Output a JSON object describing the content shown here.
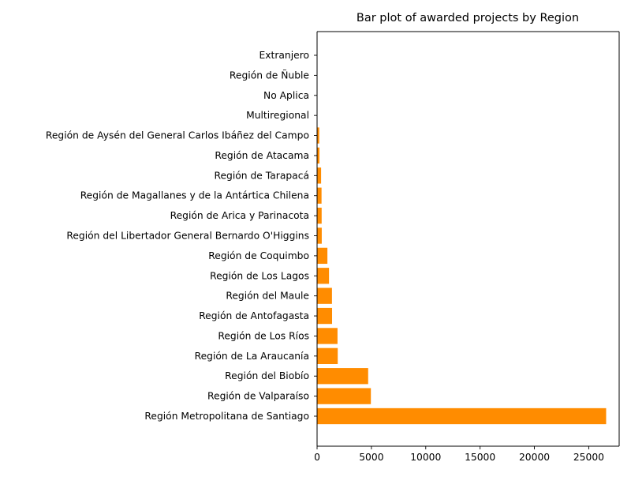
{
  "chart_data": {
    "type": "bar",
    "orientation": "horizontal",
    "title": "Bar plot of awarded projects by Region",
    "xlabel": "",
    "ylabel": "",
    "xlim": [
      0,
      27800
    ],
    "xticks": [
      0,
      5000,
      10000,
      15000,
      20000,
      25000
    ],
    "xtick_labels": [
      "0",
      "5000",
      "10000",
      "15000",
      "20000",
      "25000"
    ],
    "bar_color": "#ff8c00",
    "grid": false,
    "categories": [
      "Región Metropolitana de Santiago",
      "Región de Valparaíso",
      "Región del Biobío",
      "Región de La Araucanía",
      "Región de Los Ríos",
      "Región de Antofagasta",
      "Región del Maule",
      "Región de Los Lagos",
      "Región de Coquimbo",
      "Región del Libertador General Bernardo O'Higgins",
      "Región de Arica y Parinacota",
      "Región de Magallanes y de la Antártica Chilena",
      "Región de Tarapacá",
      "Región de Atacama",
      "Región de Aysén del General Carlos Ibáñez del Campo",
      "Multiregional",
      "No Aplica",
      "Región de Ñuble",
      "Extranjero"
    ],
    "values": [
      26600,
      4950,
      4700,
      1900,
      1880,
      1380,
      1370,
      1100,
      950,
      430,
      420,
      410,
      370,
      220,
      200,
      20,
      10,
      5,
      5
    ]
  }
}
